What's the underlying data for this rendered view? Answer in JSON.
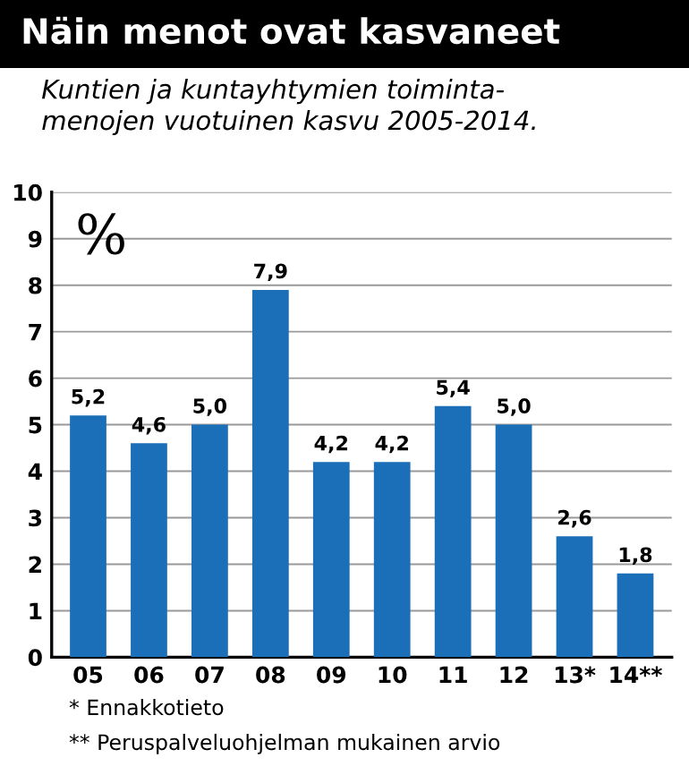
{
  "chart_data": {
    "type": "bar",
    "title": "Näin menot ovat kasvaneet",
    "subtitle": "Kuntien ja kuntayhtymien toiminta-\nmenojen vuotuinen kasvu 2005-2014.",
    "ylabel": "%",
    "categories": [
      "05",
      "06",
      "07",
      "08",
      "09",
      "10",
      "11",
      "12",
      "13*",
      "14**"
    ],
    "values": [
      5.2,
      4.6,
      5.0,
      7.9,
      4.2,
      4.2,
      5.4,
      5.0,
      2.6,
      1.8
    ],
    "value_labels": [
      "5,2",
      "4,6",
      "5,0",
      "7,9",
      "4,2",
      "4,2",
      "5,4",
      "5,0",
      "2,6",
      "1,8"
    ],
    "color": "#1b6fb8",
    "ylim": [
      0,
      10
    ],
    "yticks": [
      0,
      1,
      2,
      3,
      4,
      5,
      6,
      7,
      8,
      9,
      10
    ],
    "grid": "y",
    "annotations": [
      "* Ennakkotieto",
      "** Peruspalveluohjelman mukainen arvio"
    ]
  }
}
